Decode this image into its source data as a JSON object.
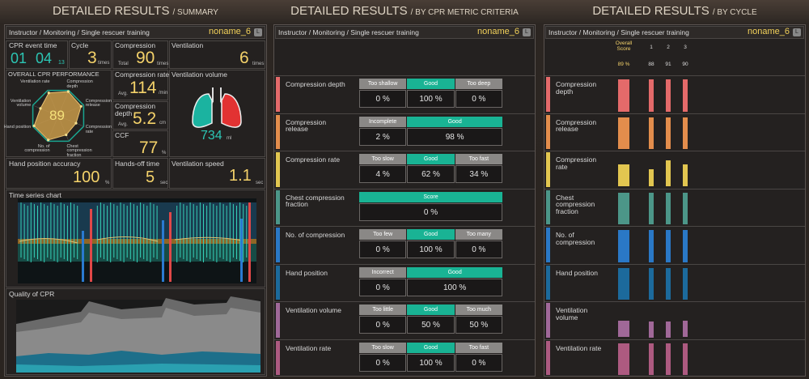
{
  "panels": [
    {
      "title": "DETAILED RESULTS",
      "subtitle": "/ SUMMARY",
      "breadcrumb": "Instructor / Monitoring / Single rescuer training",
      "user": "noname_6",
      "badge": "L"
    },
    {
      "title": "DETAILED RESULTS",
      "subtitle": "/ BY CPR METRIC CRITERIA",
      "breadcrumb": "Instructor / Monitoring / Single rescuer training",
      "user": "noname_6",
      "badge": "L"
    },
    {
      "title": "DETAILED RESULTS",
      "subtitle": "/ BY CYCLE",
      "breadcrumb": "Instructor / Monitoring / Single rescuer training",
      "user": "noname_6",
      "badge": "L"
    }
  ],
  "summary": {
    "event_time": {
      "label": "CPR event time",
      "minutes": "01",
      "seconds": "04",
      "fraction": "13"
    },
    "cycle": {
      "label": "Cycle",
      "value": "3",
      "unit": "times"
    },
    "compression": {
      "label": "Compression",
      "sublabel": "Total",
      "value": "90",
      "unit": "times"
    },
    "ventilation": {
      "label": "Ventilation",
      "value": "6",
      "unit": "times"
    },
    "performance": {
      "label": "OVERALL CPR PERFORMANCE",
      "score": "89",
      "axes": [
        {
          "label": "Ventilation rate",
          "value": 90
        },
        {
          "label": "Compression depth",
          "value": 95
        },
        {
          "label": "Compression release",
          "value": 90
        },
        {
          "label": "Compression rate",
          "value": 70
        },
        {
          "label": "Chest compression fraction",
          "value": 75
        },
        {
          "label": "No. of compression",
          "value": 95
        },
        {
          "label": "Hand position",
          "value": 95
        },
        {
          "label": "Ventilation volume",
          "value": 70
        }
      ]
    },
    "compression_rate": {
      "label": "Compression rate",
      "sublabel": "Avg.",
      "value": "114",
      "unit": "/min"
    },
    "compression_depth": {
      "label": "Compression depth",
      "sublabel": "Avg.",
      "value": "5.2",
      "unit": "cm"
    },
    "ccf": {
      "label": "CCF",
      "value": "77",
      "unit": "%"
    },
    "ventilation_volume": {
      "label": "Ventilation volume",
      "value": "734",
      "unit": "ml"
    },
    "hand_position": {
      "label": "Hand position accuracy",
      "value": "100",
      "unit": "%"
    },
    "hands_off": {
      "label": "Hands-off time",
      "value": "5",
      "unit": "sec"
    },
    "ventilation_speed": {
      "label": "Ventilation speed",
      "value": "1.1",
      "unit": "sec"
    },
    "time_series": {
      "label": "Time series chart"
    },
    "quality": {
      "label": "Quality of CPR"
    }
  },
  "criteria": {
    "rows": [
      {
        "label": "Compression depth",
        "color": "#e46a6a",
        "cells": [
          {
            "label": "Too shallow",
            "value": "0 %"
          },
          {
            "label": "Good",
            "value": "100 %"
          },
          {
            "label": "Too deep",
            "value": "0 %"
          }
        ]
      },
      {
        "label": "Compression release",
        "color": "#e38d4c",
        "cells": [
          {
            "label": "Incomplete",
            "value": "2 %"
          },
          {
            "label": "Good",
            "value": "98 %"
          }
        ]
      },
      {
        "label": "Compression rate",
        "color": "#e2c650",
        "cells": [
          {
            "label": "Too slow",
            "value": "4 %"
          },
          {
            "label": "Good",
            "value": "62 %"
          },
          {
            "label": "Too fast",
            "value": "34 %"
          }
        ]
      },
      {
        "label": "Chest compression fraction",
        "color": "#4c9688",
        "cells": [
          {
            "label": "Score",
            "value": "0 %"
          }
        ]
      },
      {
        "label": "No. of compression",
        "color": "#2a78c6",
        "cells": [
          {
            "label": "Too few",
            "value": "0 %"
          },
          {
            "label": "Good",
            "value": "100 %"
          },
          {
            "label": "Too many",
            "value": "0 %"
          }
        ]
      },
      {
        "label": "Hand position",
        "color": "#1c6a9c",
        "cells": [
          {
            "label": "Incorrect",
            "value": "0 %"
          },
          {
            "label": "Good",
            "value": "100 %"
          }
        ]
      },
      {
        "label": "Ventilation volume",
        "color": "#a06898",
        "cells": [
          {
            "label": "Too little",
            "value": "0 %"
          },
          {
            "label": "Good",
            "value": "50 %"
          },
          {
            "label": "Too much",
            "value": "50 %"
          }
        ]
      },
      {
        "label": "Ventilation rate",
        "color": "#ad5a80",
        "cells": [
          {
            "label": "Too slow",
            "value": "0 %"
          },
          {
            "label": "Good",
            "value": "100 %"
          },
          {
            "label": "Too fast",
            "value": "0 %"
          }
        ]
      }
    ]
  },
  "cycles": {
    "overall_label": "Overall Score",
    "overall_value": "89 %",
    "cycle_labels": [
      "1",
      "2",
      "3"
    ],
    "cycle_values": [
      "88",
      "91",
      "90"
    ],
    "rows": [
      {
        "label": "Compression depth",
        "color": "#e46a6a",
        "bars": [
          100,
          100,
          100,
          100
        ]
      },
      {
        "label": "Compression release",
        "color": "#e38d4c",
        "bars": [
          100,
          100,
          100,
          100
        ]
      },
      {
        "label": "Compression rate",
        "color": "#e2c650",
        "bars": [
          70,
          55,
          82,
          70
        ]
      },
      {
        "label": "Chest compression fraction",
        "color": "#4c9688",
        "bars": [
          100,
          100,
          100,
          100
        ]
      },
      {
        "label": "No. of compression",
        "color": "#2a78c6",
        "bars": [
          100,
          100,
          100,
          100
        ]
      },
      {
        "label": "Hand position",
        "color": "#1c6a9c",
        "bars": [
          100,
          100,
          100,
          100
        ]
      },
      {
        "label": "Ventilation volume",
        "color": "#a06898",
        "bars": [
          52,
          50,
          50,
          52
        ]
      },
      {
        "label": "Ventilation rate",
        "color": "#ad5a80",
        "bars": [
          100,
          100,
          100,
          100
        ]
      }
    ]
  }
}
